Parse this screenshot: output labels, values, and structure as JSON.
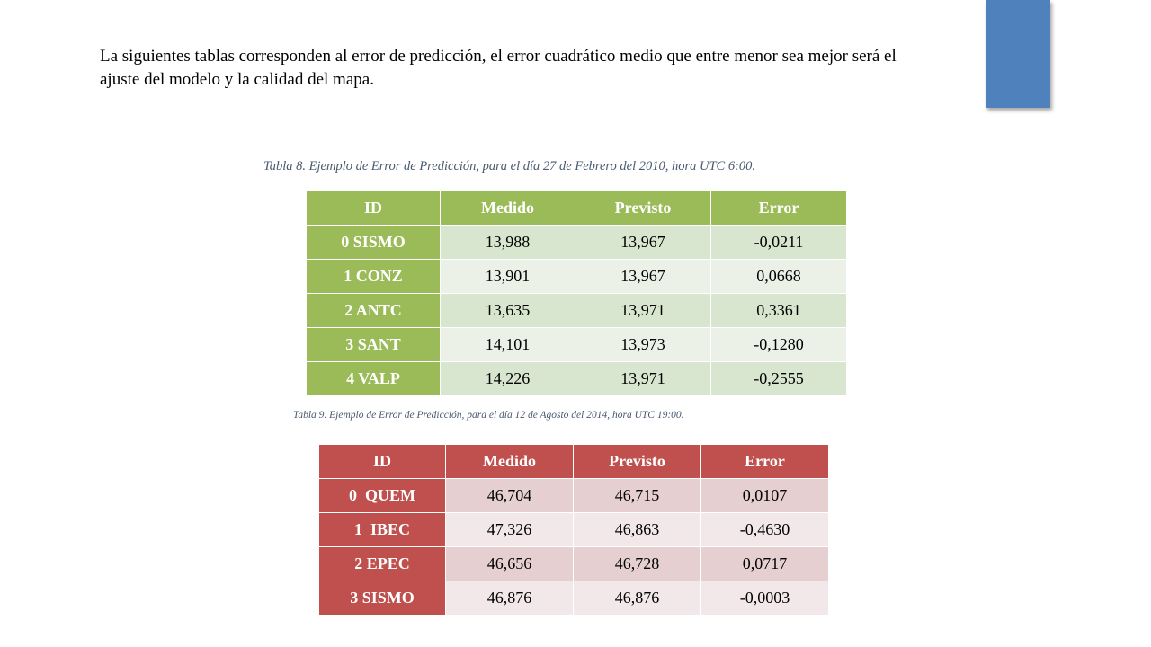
{
  "intro_text": "La siguientes tablas corresponden al error de predicción, el error cuadrático medio que entre menor sea mejor será  el ajuste del modelo y la calidad del mapa.",
  "table8": {
    "caption": "Tabla  8. Ejemplo de Error de Predicción, para el día 27 de Febrero del 2010, hora UTC 6:00.",
    "headers": [
      "ID",
      "Medido",
      "Previsto",
      "Error"
    ],
    "rows": [
      [
        "0 SISMO",
        "13,988",
        "13,967",
        "-0,0211"
      ],
      [
        "1 CONZ",
        "13,901",
        "13,967",
        "0,0668"
      ],
      [
        "2 ANTC",
        "13,635",
        "13,971",
        "0,3361"
      ],
      [
        "3 SANT",
        "14,101",
        "13,973",
        "-0,1280"
      ],
      [
        "4 VALP",
        "14,226",
        "13,971",
        "-0,2555"
      ]
    ]
  },
  "table9": {
    "caption": "Tabla 9. Ejemplo de Error de Predicción, para el día 12 de Agosto del 2014, hora UTC 19:00.",
    "headers": [
      "ID",
      "Medido",
      "Previsto",
      "Error"
    ],
    "rows": [
      [
        "0  QUEM",
        "46,704",
        "46,715",
        "0,0107"
      ],
      [
        "1  IBEC",
        "47,326",
        "46,863",
        "-0,4630"
      ],
      [
        "2 EPEC",
        "46,656",
        "46,728",
        "0,0717"
      ],
      [
        "3 SISMO",
        "46,876",
        "46,876",
        "-0,0003"
      ]
    ]
  },
  "colors": {
    "accent_bar": "#4f81bd",
    "green_header": "#9bbb59",
    "red_header": "#c0504d"
  }
}
